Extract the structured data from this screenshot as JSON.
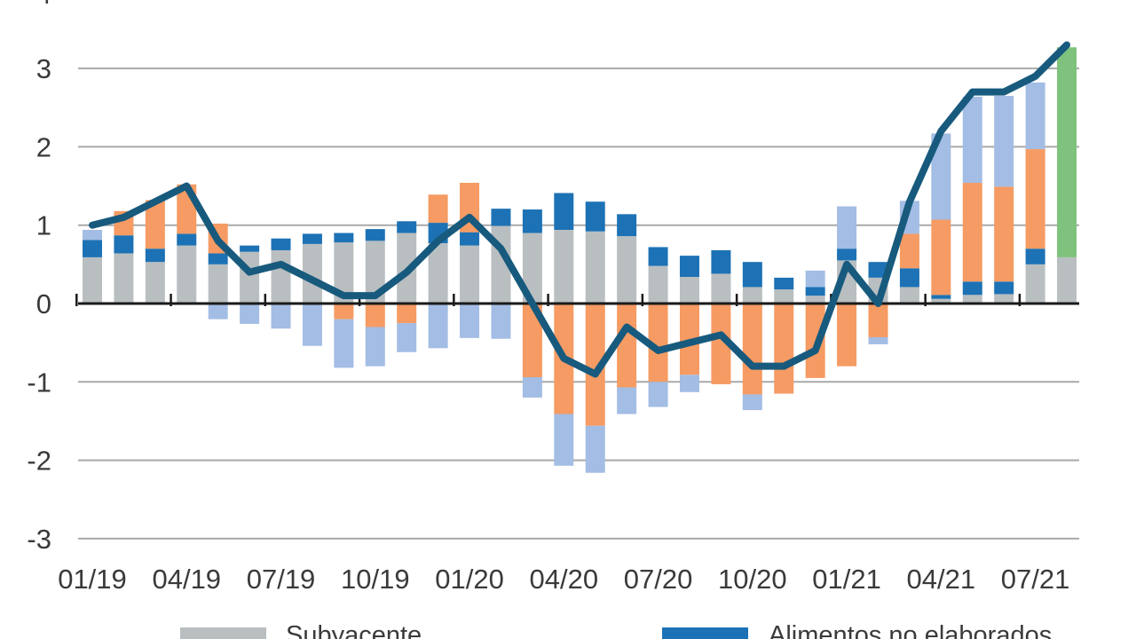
{
  "y_axis": {
    "tick_labels": [
      "3",
      "2",
      "1",
      "0",
      "-1",
      "-2",
      "-3"
    ],
    "values": [
      3,
      2,
      1,
      0,
      -1,
      -2,
      -3
    ],
    "partial_top_label": "4"
  },
  "x_axis": {
    "tick_labels": [
      "01/19",
      "04/19",
      "07/19",
      "10/19",
      "01/20",
      "04/20",
      "07/20",
      "10/20",
      "01/21",
      "04/21",
      "07/21"
    ]
  },
  "legend": {
    "items": [
      {
        "label": "Subyacente",
        "color": "#b9bec1"
      },
      {
        "label": "Alimentos no elaborados",
        "color": "#1d72b5"
      }
    ],
    "note": "legend row is cut off at the bottom edge of the image"
  },
  "chart_data": {
    "type": "bar",
    "subtype": "stacked-bars-with-line-overlay",
    "grid": "horizontal",
    "ylim": [
      -3,
      3.5
    ],
    "categories": [
      "01/19",
      "02/19",
      "03/19",
      "04/19",
      "05/19",
      "06/19",
      "07/19",
      "08/19",
      "09/19",
      "10/19",
      "11/19",
      "12/19",
      "01/20",
      "02/20",
      "03/20",
      "04/20",
      "05/20",
      "06/20",
      "07/20",
      "08/20",
      "09/20",
      "10/20",
      "11/20",
      "12/20",
      "01/21",
      "02/21",
      "03/21",
      "04/21",
      "05/21",
      "06/21",
      "07/21",
      "08/21"
    ],
    "series": [
      {
        "legend_label": "Subyacente",
        "color": "#b9bec1",
        "values": [
          0.59,
          0.64,
          0.53,
          0.74,
          0.5,
          0.66,
          0.68,
          0.76,
          0.78,
          0.8,
          0.9,
          0.77,
          0.74,
          0.99,
          0.9,
          0.94,
          0.92,
          0.86,
          0.48,
          0.34,
          0.38,
          0.21,
          0.18,
          0.1,
          0.55,
          0.33,
          0.21,
          0.06,
          0.11,
          0.12,
          0.5,
          0.59
        ]
      },
      {
        "legend_label": "Alimentos no elaborados",
        "color": "#1d72b5",
        "values": [
          0.22,
          0.23,
          0.17,
          0.15,
          0.14,
          0.08,
          0.15,
          0.13,
          0.12,
          0.15,
          0.15,
          0.26,
          0.17,
          0.22,
          0.3,
          0.47,
          0.38,
          0.28,
          0.24,
          0.27,
          0.3,
          0.32,
          0.15,
          0.11,
          0.15,
          0.2,
          0.24,
          0.05,
          0.17,
          0.16,
          0.2,
          0.0
        ]
      },
      {
        "legend_label": null,
        "color_name": "orange",
        "color": "#f59b63",
        "values": [
          0.0,
          0.31,
          0.62,
          0.63,
          0.38,
          0.0,
          0.0,
          0.0,
          -0.2,
          -0.3,
          -0.25,
          0.36,
          0.63,
          0.0,
          -0.94,
          -1.41,
          -1.56,
          -1.07,
          -1.0,
          -0.91,
          -1.03,
          -1.16,
          -1.15,
          -0.95,
          -0.8,
          -0.43,
          0.44,
          0.96,
          1.26,
          1.21,
          1.27,
          0.0
        ]
      },
      {
        "legend_label": null,
        "color_name": "light-blue",
        "color": "#a3bde4",
        "values": [
          0.13,
          0.0,
          0.0,
          0.0,
          -0.2,
          -0.26,
          -0.32,
          -0.54,
          -0.62,
          -0.5,
          -0.37,
          -0.57,
          -0.44,
          -0.45,
          -0.26,
          -0.66,
          -0.6,
          -0.34,
          -0.32,
          -0.22,
          0.0,
          -0.2,
          0.0,
          0.21,
          0.54,
          -0.09,
          0.42,
          1.1,
          1.1,
          1.16,
          0.85,
          0.0
        ]
      },
      {
        "legend_label": null,
        "color_name": "green",
        "color": "#7fc27d",
        "values": [
          0,
          0,
          0,
          0,
          0,
          0,
          0,
          0,
          0,
          0,
          0,
          0,
          0,
          0,
          0,
          0,
          0,
          0,
          0,
          0,
          0,
          0,
          0,
          0,
          0,
          0,
          0,
          0,
          0,
          0,
          0,
          2.68
        ]
      }
    ],
    "line_series": {
      "legend_label": null,
      "color": "#175a7d",
      "values": [
        1.0,
        1.1,
        1.3,
        1.5,
        0.8,
        0.4,
        0.5,
        0.3,
        0.1,
        0.1,
        0.4,
        0.8,
        1.1,
        0.7,
        0.0,
        -0.7,
        -0.9,
        -0.3,
        -0.6,
        -0.5,
        -0.4,
        -0.8,
        -0.8,
        -0.6,
        0.5,
        0.0,
        1.3,
        2.2,
        2.7,
        2.7,
        2.9,
        3.3
      ]
    }
  }
}
